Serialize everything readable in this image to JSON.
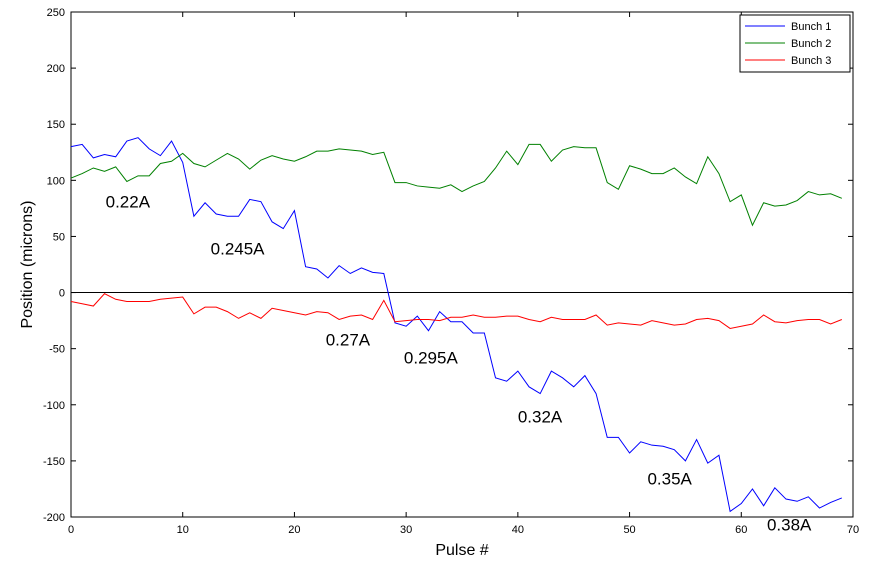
{
  "chart_data": {
    "type": "line",
    "xlabel": "Pulse #",
    "ylabel": "Position (microns)",
    "xlim": [
      0,
      70
    ],
    "ylim": [
      -200,
      250
    ],
    "xticks": [
      0,
      10,
      20,
      30,
      40,
      50,
      60,
      70
    ],
    "yticks": [
      -200,
      -150,
      -100,
      -50,
      0,
      50,
      100,
      150,
      200,
      250
    ],
    "zero_line": true,
    "grid": false,
    "legend_position": "top-right",
    "series": [
      {
        "name": "Bunch 1",
        "color": "#0000ff",
        "values": [
          130,
          132,
          120,
          123,
          121,
          135,
          138,
          128,
          122,
          135,
          116,
          68,
          80,
          70,
          68,
          68,
          83,
          81,
          63,
          57,
          73,
          23,
          21,
          13,
          24,
          17,
          22,
          18,
          17,
          -27,
          -30,
          -21,
          -34,
          -17,
          -26,
          -26,
          -36,
          -36,
          -76,
          -79,
          -70,
          -84,
          -90,
          -70,
          -76,
          -84,
          -74,
          -90,
          -129,
          -129,
          -143,
          -133,
          -136,
          -137,
          -140,
          -150,
          -131,
          -152,
          -145,
          -195,
          -188,
          -175,
          -190,
          -174,
          -184,
          -186,
          -182,
          -192,
          -187,
          -183
        ]
      },
      {
        "name": "Bunch 2",
        "color": "#008000",
        "values": [
          102,
          106,
          111,
          108,
          112,
          99,
          104,
          104,
          115,
          117,
          124,
          115,
          112,
          118,
          124,
          119,
          110,
          118,
          122,
          119,
          117,
          121,
          126,
          126,
          128,
          127,
          126,
          123,
          125,
          98,
          98,
          95,
          94,
          93,
          96,
          90,
          95,
          99,
          111,
          126,
          114,
          132,
          132,
          117,
          127,
          130,
          129,
          129,
          98,
          92,
          113,
          110,
          106,
          106,
          111,
          103,
          97,
          121,
          106,
          81,
          87,
          60,
          80,
          77,
          78,
          82,
          90,
          87,
          88,
          84
        ]
      },
      {
        "name": "Bunch 3",
        "color": "#ff0000",
        "values": [
          -8,
          -10,
          -12,
          -1,
          -6,
          -8,
          -8,
          -8,
          -6,
          -5,
          -4,
          -19,
          -13,
          -13,
          -17,
          -23,
          -18,
          -23,
          -14,
          -16,
          -18,
          -20,
          -17,
          -18,
          -24,
          -21,
          -20,
          -24,
          -7,
          -26,
          -25,
          -24,
          -24,
          -25,
          -22,
          -22,
          -20,
          -22,
          -22,
          -21,
          -21,
          -24,
          -26,
          -22,
          -24,
          -24,
          -24,
          -20,
          -29,
          -27,
          -28,
          -29,
          -25,
          -27,
          -29,
          -28,
          -24,
          -23,
          -25,
          -32,
          -30,
          -28,
          -20,
          -26,
          -27,
          -25,
          -24,
          -24,
          -28,
          -24
        ]
      }
    ],
    "annotations": [
      {
        "text": "0.22A",
        "x": 3.1,
        "y": 76
      },
      {
        "text": "0.245A",
        "x": 12.5,
        "y": 34
      },
      {
        "text": "0.27A",
        "x": 22.8,
        "y": -47
      },
      {
        "text": "0.295A",
        "x": 29.8,
        "y": -63
      },
      {
        "text": "0.32A",
        "x": 40.0,
        "y": -116
      },
      {
        "text": "0.35A",
        "x": 51.6,
        "y": -171
      },
      {
        "text": "0.38A",
        "x": 62.3,
        "y": -212
      }
    ]
  }
}
